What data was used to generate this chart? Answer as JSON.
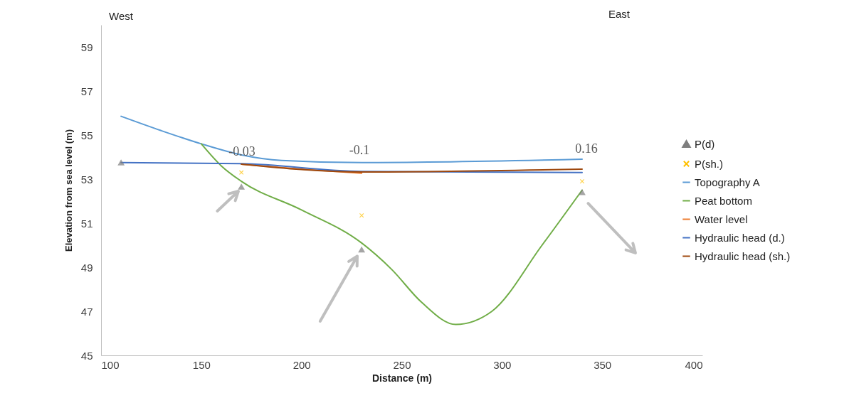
{
  "chart_data": {
    "type": "line",
    "xlabel": "Distance (m)",
    "ylabel": "Elevation from sea level (m)",
    "xlim": [
      100,
      400
    ],
    "xticks": [
      100,
      150,
      200,
      250,
      300,
      350,
      400
    ],
    "ylim": [
      45,
      60
    ],
    "yticks": [
      45,
      47,
      49,
      51,
      53,
      55,
      57,
      59
    ],
    "grid": false,
    "legend": "right",
    "series": [
      {
        "name": "P(d)",
        "type": "scatter",
        "marker": "triangle",
        "color": "#7f7f7f",
        "x": [
          110,
          170,
          230,
          340
        ],
        "values": [
          53.75,
          52.65,
          49.8,
          52.4
        ]
      },
      {
        "name": "P(sh.)",
        "type": "scatter",
        "marker": "cross",
        "color": "#ffc000",
        "x": [
          170,
          230,
          340
        ],
        "values": [
          53.3,
          51.35,
          52.9
        ]
      },
      {
        "name": "Topography A",
        "color": "#5b9bd5",
        "x": [
          110,
          130,
          150,
          170,
          190,
          230,
          340
        ],
        "values": [
          55.85,
          55.2,
          54.6,
          54.1,
          53.85,
          53.75,
          53.9
        ]
      },
      {
        "name": "Peat bottom",
        "color": "#70ad47",
        "x": [
          150,
          160,
          170,
          200,
          230,
          245,
          260,
          277,
          295,
          320,
          340
        ],
        "values": [
          54.6,
          53.6,
          52.9,
          51.6,
          50.1,
          48.9,
          47.4,
          46.4,
          47.0,
          50.0,
          52.5
        ]
      },
      {
        "name": "Water level",
        "color": "#ed7d31",
        "x": [
          170,
          200,
          230
        ],
        "values": [
          53.68,
          53.45,
          53.27
        ]
      },
      {
        "name": "Hydraulic head (d.)",
        "color": "#4472c4",
        "x": [
          110,
          170,
          230,
          340
        ],
        "values": [
          53.75,
          53.7,
          53.35,
          53.3
        ]
      },
      {
        "name": "Hydraulic head (sh.)",
        "color": "#9e480e",
        "x": [
          170,
          230,
          340
        ],
        "values": [
          53.68,
          53.32,
          53.45
        ]
      }
    ],
    "annotations": [
      "West",
      "East",
      "-0.03",
      "-0.1",
      "0.16"
    ]
  }
}
